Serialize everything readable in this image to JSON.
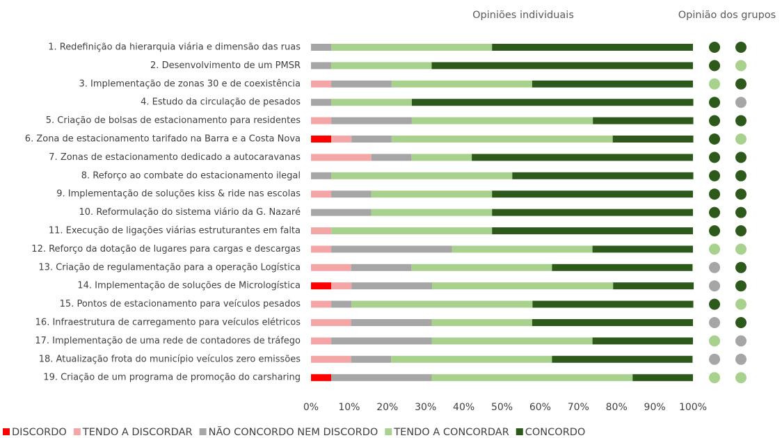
{
  "chart_data": {
    "type": "stacked-barh",
    "headers": [
      "Opiniões individuais",
      "Opinião dos grupos"
    ],
    "categories": [
      "1. Redefinição da hierarquia viária e dimensão das ruas",
      "2. Desenvolvimento de um PMSR",
      "3. Implementação de zonas 30 e de coexistência",
      "4. Estudo da circulação de pesados",
      "5. Criação de bolsas de estacionamento para residentes",
      "6. Zona de estacionamento tarifado na Barra e a Costa Nova",
      "7. Zonas de estacionamento dedicado a autocaravanas",
      "8. Reforço ao combate do estacionamento ilegal",
      "9. Implementação de soluções kiss & ride nas escolas",
      "10. Reformulação do sistema viário da G. Nazaré",
      "11. Execução de ligações viárias estruturantes em falta",
      "12. Reforço da dotação de lugares para cargas e descargas",
      "13. Criação de regulamentação para a operação Logística",
      "14. Implementação de soluções de Micrologística",
      "15. Pontos de estacionamento para veículos pesados",
      "16. Infraestrutura de carregamento para veículos elétricos",
      "17. Implementação de uma rede de contadores de tráfego",
      "18. Atualização frota do município veículos zero emissões",
      "19. Criação de um programa de promoção do carsharing"
    ],
    "series": [
      {
        "name": "DISCORDO",
        "color": "#ff0000",
        "values": [
          0,
          0,
          0,
          0,
          0,
          5.3,
          0,
          0,
          0,
          0,
          0,
          0,
          0,
          5.3,
          0,
          0,
          0,
          0,
          5.3
        ]
      },
      {
        "name": "TENDO A DISCORDAR",
        "color": "#f4a6a6",
        "values": [
          0,
          0,
          5.3,
          0,
          5.3,
          5.3,
          15.8,
          0,
          5.3,
          0,
          5.3,
          5.3,
          10.5,
          5.3,
          5.3,
          10.5,
          5.3,
          10.5,
          0
        ]
      },
      {
        "name": "NÃO CONCORDO NEM DISCORDO",
        "color": "#a6a6a6",
        "values": [
          5.3,
          5.3,
          15.8,
          5.3,
          21.1,
          10.5,
          10.5,
          5.3,
          10.5,
          15.8,
          0,
          31.6,
          15.8,
          21.1,
          5.3,
          21.1,
          26.3,
          10.5,
          26.3
        ]
      },
      {
        "name": "TENDO A CONCORDAR",
        "color": "#a9d18e",
        "values": [
          42.1,
          26.3,
          36.8,
          21.1,
          47.4,
          57.9,
          15.8,
          47.4,
          31.6,
          31.6,
          42.1,
          36.8,
          36.8,
          47.4,
          47.4,
          26.3,
          42.1,
          42.1,
          52.6
        ]
      },
      {
        "name": "CONCORDO",
        "color": "#2d5a1b",
        "values": [
          52.6,
          68.4,
          42.1,
          73.7,
          26.3,
          21.1,
          57.9,
          47.4,
          52.6,
          52.6,
          52.6,
          26.3,
          36.8,
          21.1,
          42.1,
          42.1,
          26.3,
          36.8,
          15.8
        ]
      }
    ],
    "group_opinions": [
      [
        "CONCORDO",
        "CONCORDO"
      ],
      [
        "CONCORDO",
        "TENDO A CONCORDAR"
      ],
      [
        "TENDO A CONCORDAR",
        "CONCORDO"
      ],
      [
        "CONCORDO",
        "NÃO CONCORDO NEM DISCORDO"
      ],
      [
        "CONCORDO",
        "CONCORDO"
      ],
      [
        "CONCORDO",
        "TENDO A CONCORDAR"
      ],
      [
        "CONCORDO",
        "CONCORDO"
      ],
      [
        "CONCORDO",
        "CONCORDO"
      ],
      [
        "CONCORDO",
        "CONCORDO"
      ],
      [
        "CONCORDO",
        "CONCORDO"
      ],
      [
        "CONCORDO",
        "CONCORDO"
      ],
      [
        "TENDO A CONCORDAR",
        "TENDO A CONCORDAR"
      ],
      [
        "NÃO CONCORDO NEM DISCORDO",
        "CONCORDO"
      ],
      [
        "NÃO CONCORDO NEM DISCORDO",
        "CONCORDO"
      ],
      [
        "CONCORDO",
        "TENDO A CONCORDAR"
      ],
      [
        "NÃO CONCORDO NEM DISCORDO",
        "CONCORDO"
      ],
      [
        "TENDO A CONCORDAR",
        "NÃO CONCORDO NEM DISCORDO"
      ],
      [
        "NÃO CONCORDO NEM DISCORDO",
        "NÃO CONCORDO NEM DISCORDO"
      ],
      [
        "TENDO A CONCORDAR",
        "TENDO A CONCORDAR"
      ]
    ],
    "xlim": [
      0,
      100
    ],
    "xticks": [
      {
        "value": 0,
        "label": "0%"
      },
      {
        "value": 10,
        "label": "10%"
      },
      {
        "value": 20,
        "label": "20%"
      },
      {
        "value": 30,
        "label": "30%"
      },
      {
        "value": 40,
        "label": "40%"
      },
      {
        "value": 50,
        "label": "50%"
      },
      {
        "value": 60,
        "label": "60%"
      },
      {
        "value": 70,
        "label": "70%"
      },
      {
        "value": 80,
        "label": "80%"
      },
      {
        "value": 90,
        "label": "90%"
      },
      {
        "value": 100,
        "label": "100%"
      }
    ],
    "legend": "bottom"
  }
}
